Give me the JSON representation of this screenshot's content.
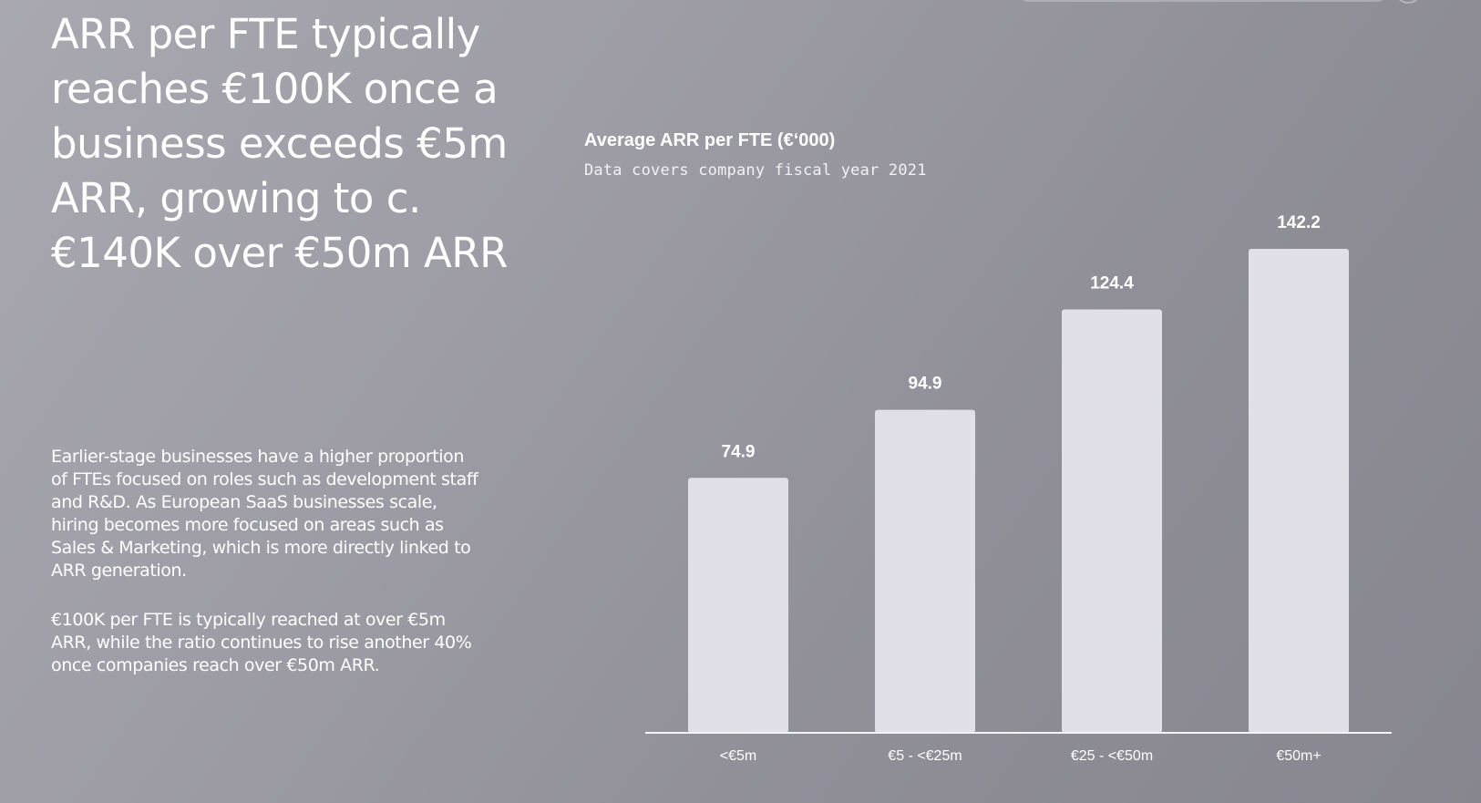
{
  "headline": "ARR per FTE typically reaches €100K once a business exceeds €5m ARR, growing to c.€140K over €50m ARR",
  "paragraphs": [
    "Earlier-stage businesses have a higher proportion of FTEs focused on roles such as development staff and R&D. As European SaaS businesses scale, hiring becomes more focused on areas such as Sales & Marketing, which is more directly linked to ARR generation.",
    "€100K per FTE is typically reached at over €5m ARR, while the ratio continues to rise another 40% once companies reach over €50m ARR."
  ],
  "colors": {
    "bar": "#e1e0e8",
    "axis": "#f4f4f6",
    "text": "#ffffff"
  },
  "chart_data": {
    "type": "bar",
    "title": "Average ARR per FTE (€‘000)",
    "subtitle": "Data covers company fiscal year 2021",
    "categories": [
      "<€5m",
      "€5 - <€25m",
      "€25 - <€50m",
      "€50m+"
    ],
    "values": [
      74.9,
      94.9,
      124.4,
      142.2
    ],
    "value_labels": [
      "74.9",
      "94.9",
      "124.4",
      "142.2"
    ],
    "xlabel": "",
    "ylabel": "",
    "ylim": [
      0,
      150
    ],
    "grid": false,
    "legend": "none"
  }
}
